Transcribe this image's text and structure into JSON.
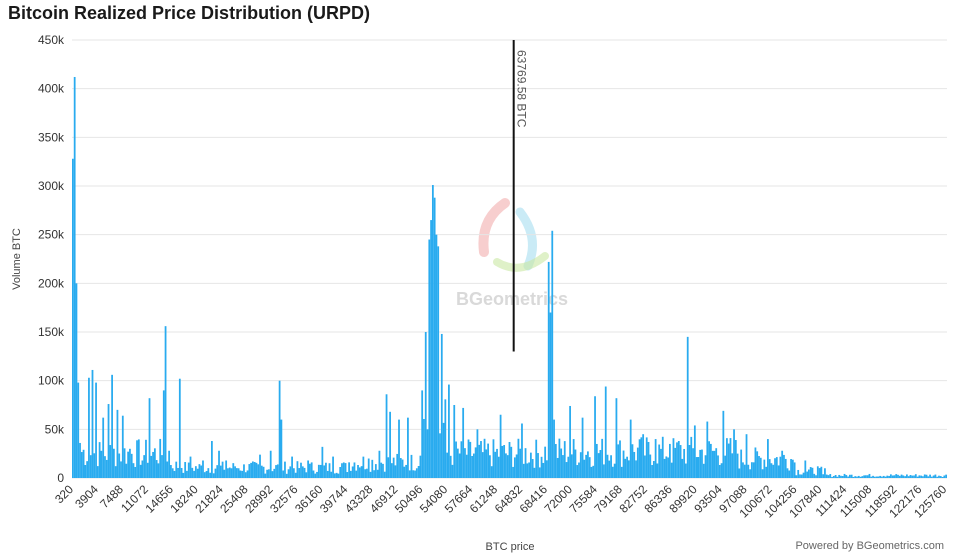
{
  "title": "Bitcoin Realized Price Distribution (URPD)",
  "credit": "Powered by BGeometrics.com",
  "watermark": "BGeometrics",
  "chart_data": {
    "type": "bar",
    "title": "Bitcoin Realized Price Distribution (URPD)",
    "xlabel": "BTC price",
    "ylabel": "Volume BTC",
    "ylim": [
      0,
      450000
    ],
    "grid": true,
    "bar_color": "#29abef",
    "y_ticks": [
      0,
      50000,
      100000,
      150000,
      200000,
      250000,
      300000,
      350000,
      400000,
      450000
    ],
    "y_tick_labels": [
      "0",
      "50k",
      "100k",
      "150k",
      "200k",
      "250k",
      "300k",
      "350k",
      "400k",
      "450k"
    ],
    "x_tick_labels": [
      "320",
      "3904",
      "7488",
      "11072",
      "14656",
      "18240",
      "21824",
      "25408",
      "28992",
      "32576",
      "36160",
      "39744",
      "43328",
      "46912",
      "50496",
      "54080",
      "57664",
      "61248",
      "64832",
      "68416",
      "72000",
      "75584",
      "79168",
      "82752",
      "86336",
      "89920",
      "93504",
      "97088",
      "100672",
      "104256",
      "107840",
      "111424",
      "115008",
      "118592",
      "122176",
      "125760"
    ],
    "marker": {
      "value": 63769.58,
      "label": "63769.58 BTC"
    },
    "bin_size": 256,
    "x_start": 320,
    "peaks": [
      {
        "x": 320,
        "y": 328000
      },
      {
        "x": 576,
        "y": 412000
      },
      {
        "x": 832,
        "y": 200000
      },
      {
        "x": 1088,
        "y": 98000
      },
      {
        "x": 1344,
        "y": 36000
      },
      {
        "x": 2624,
        "y": 103000
      },
      {
        "x": 3136,
        "y": 111000
      },
      {
        "x": 3648,
        "y": 98000
      },
      {
        "x": 4672,
        "y": 62000
      },
      {
        "x": 5440,
        "y": 76000
      },
      {
        "x": 5952,
        "y": 106000
      },
      {
        "x": 6720,
        "y": 70000
      },
      {
        "x": 7488,
        "y": 64000
      },
      {
        "x": 8512,
        "y": 30000
      },
      {
        "x": 10304,
        "y": 18000
      },
      {
        "x": 11328,
        "y": 82000
      },
      {
        "x": 13376,
        "y": 90000
      },
      {
        "x": 13632,
        "y": 156000
      },
      {
        "x": 14144,
        "y": 28000
      },
      {
        "x": 15680,
        "y": 102000
      },
      {
        "x": 17216,
        "y": 22000
      },
      {
        "x": 19008,
        "y": 18000
      },
      {
        "x": 20288,
        "y": 38000
      },
      {
        "x": 21312,
        "y": 28000
      },
      {
        "x": 22336,
        "y": 18000
      },
      {
        "x": 23616,
        "y": 12000
      },
      {
        "x": 27200,
        "y": 24000
      },
      {
        "x": 28736,
        "y": 28000
      },
      {
        "x": 30016,
        "y": 100000
      },
      {
        "x": 30272,
        "y": 60000
      },
      {
        "x": 31808,
        "y": 22000
      },
      {
        "x": 34112,
        "y": 18000
      },
      {
        "x": 36160,
        "y": 32000
      },
      {
        "x": 37696,
        "y": 22000
      },
      {
        "x": 39232,
        "y": 16000
      },
      {
        "x": 42816,
        "y": 20000
      },
      {
        "x": 44352,
        "y": 28000
      },
      {
        "x": 45376,
        "y": 86000
      },
      {
        "x": 45888,
        "y": 68000
      },
      {
        "x": 47168,
        "y": 60000
      },
      {
        "x": 48448,
        "y": 62000
      },
      {
        "x": 50496,
        "y": 90000
      },
      {
        "x": 51008,
        "y": 150000
      },
      {
        "x": 51520,
        "y": 245000
      },
      {
        "x": 51776,
        "y": 265000
      },
      {
        "x": 52032,
        "y": 301000
      },
      {
        "x": 52288,
        "y": 288000
      },
      {
        "x": 52544,
        "y": 250000
      },
      {
        "x": 52800,
        "y": 238000
      },
      {
        "x": 53312,
        "y": 148000
      },
      {
        "x": 54336,
        "y": 96000
      },
      {
        "x": 55104,
        "y": 75000
      },
      {
        "x": 56384,
        "y": 72000
      },
      {
        "x": 58432,
        "y": 50000
      },
      {
        "x": 61760,
        "y": 65000
      },
      {
        "x": 64832,
        "y": 56000
      },
      {
        "x": 68672,
        "y": 222000
      },
      {
        "x": 68928,
        "y": 170000
      },
      {
        "x": 69184,
        "y": 254000
      },
      {
        "x": 69440,
        "y": 60000
      },
      {
        "x": 71744,
        "y": 74000
      },
      {
        "x": 73536,
        "y": 62000
      },
      {
        "x": 75328,
        "y": 84000
      },
      {
        "x": 76864,
        "y": 94000
      },
      {
        "x": 78400,
        "y": 82000
      },
      {
        "x": 80448,
        "y": 60000
      },
      {
        "x": 82240,
        "y": 45000
      },
      {
        "x": 84032,
        "y": 40000
      },
      {
        "x": 86080,
        "y": 35000
      },
      {
        "x": 87360,
        "y": 38000
      },
      {
        "x": 88640,
        "y": 145000
      },
      {
        "x": 89664,
        "y": 54000
      },
      {
        "x": 91456,
        "y": 58000
      },
      {
        "x": 93760,
        "y": 69000
      },
      {
        "x": 95296,
        "y": 50000
      },
      {
        "x": 97088,
        "y": 45000
      },
      {
        "x": 100160,
        "y": 40000
      },
      {
        "x": 102208,
        "y": 28000
      },
      {
        "x": 104000,
        "y": 16000
      },
      {
        "x": 105536,
        "y": 18000
      },
      {
        "x": 107328,
        "y": 12000
      },
      {
        "x": 108352,
        "y": 10000
      }
    ]
  }
}
